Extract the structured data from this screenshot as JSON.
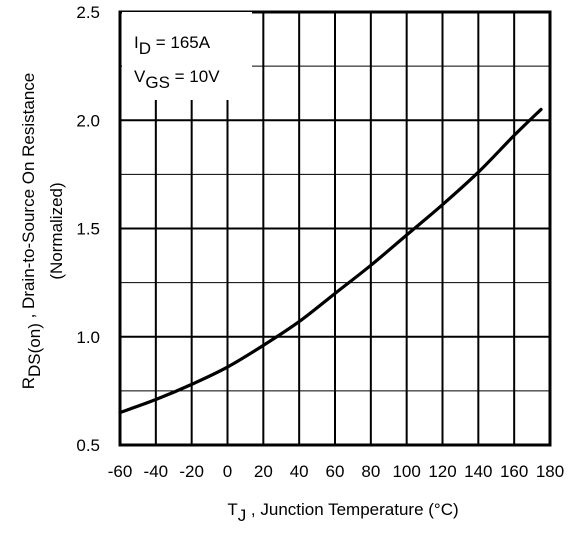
{
  "chart_data": {
    "type": "line",
    "xlabel_main": "T",
    "xlabel_sub": "J",
    "xlabel_rest": " , Junction Temperature (°C)",
    "ylabel_main": "R",
    "ylabel_sub": "DS(on)",
    "ylabel_rest": " , Drain-to-Source On Resistance",
    "ylabel_line2": "(Normalized)",
    "xlim": [
      -60,
      180
    ],
    "ylim": [
      0.5,
      2.5
    ],
    "grid": true,
    "x_ticks": [
      "-60",
      "-40",
      "-20",
      "0",
      "20",
      "40",
      "60",
      "80",
      "100",
      "120",
      "140",
      "160",
      "180"
    ],
    "y_ticks": [
      "0.5",
      "1.0",
      "1.5",
      "2.0",
      "2.5"
    ],
    "annotations": {
      "id_main": "I",
      "id_sub": "D",
      "id_rest": " = 165A",
      "vgs_main": "V",
      "vgs_sub": "GS",
      "vgs_rest": " = 10V"
    },
    "series": [
      {
        "x": [
          -60,
          -40,
          -20,
          0,
          20,
          40,
          60,
          80,
          100,
          120,
          140,
          160,
          175
        ],
        "y": [
          0.65,
          0.71,
          0.78,
          0.86,
          0.96,
          1.07,
          1.2,
          1.33,
          1.47,
          1.61,
          1.76,
          1.93,
          2.05
        ]
      }
    ]
  }
}
